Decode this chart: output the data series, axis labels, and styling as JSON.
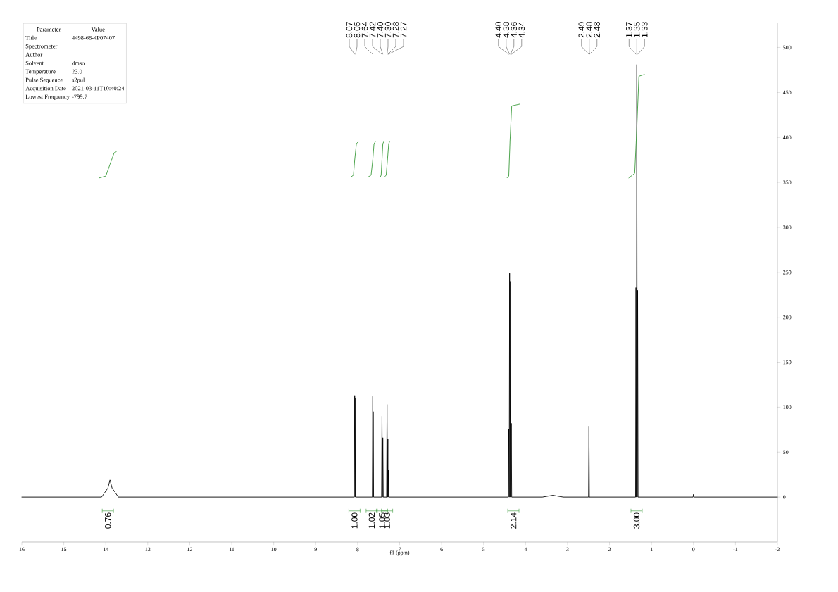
{
  "chart_data": {
    "type": "line",
    "xlabel": "f1 (ppm)",
    "xlim": [
      16,
      -2
    ],
    "xticks": [
      16,
      15,
      14,
      13,
      12,
      11,
      10,
      9,
      8,
      7,
      6,
      5,
      4,
      3,
      2,
      1,
      0,
      -1,
      -2
    ],
    "ylim": [
      -50,
      527
    ],
    "yticks": [
      0,
      50,
      100,
      150,
      200,
      250,
      300,
      350,
      400,
      450,
      500
    ],
    "series": [
      {
        "color": "#000000",
        "x": [
          16,
          14.1,
          13.95,
          13.9,
          13.85,
          13.7,
          8.08,
          8.07,
          8.06,
          8.05,
          8.04,
          7.65,
          7.64,
          7.635,
          7.63,
          7.62,
          7.43,
          7.42,
          7.41,
          7.4,
          7.39,
          7.31,
          7.3,
          7.29,
          7.28,
          7.275,
          7.27,
          7.26,
          4.41,
          4.4,
          4.39,
          4.38,
          4.37,
          4.36,
          4.35,
          4.34,
          4.33,
          3.6,
          3.35,
          3.1,
          2.5,
          2.49,
          2.48,
          1.38,
          1.37,
          1.36,
          1.35,
          1.34,
          1.33,
          1.32,
          0.01,
          0,
          -0.01,
          -2
        ],
        "values": [
          0,
          0,
          10,
          19,
          10,
          0,
          0,
          113,
          0,
          110,
          0,
          0,
          112,
          0,
          95,
          0,
          0,
          90,
          0,
          66,
          0,
          0,
          103,
          0,
          65,
          0,
          30,
          0,
          0,
          76,
          0,
          249,
          0,
          240,
          0,
          82,
          0,
          0,
          2,
          0,
          0,
          79,
          0,
          0,
          233,
          0,
          481,
          0,
          230,
          0,
          0,
          3,
          0,
          0
        ]
      },
      {
        "color": "#3a9a3a",
        "x": [
          14.15,
          14.0,
          13.9,
          13.8,
          13.75
        ],
        "values": [
          355,
          357,
          370,
          383,
          384
        ]
      },
      {
        "color": "#3a9a3a",
        "x": [
          8.16,
          8.1,
          8.07,
          8.03,
          7.99
        ],
        "values": [
          356,
          358,
          375,
          393,
          395
        ]
      },
      {
        "color": "#3a9a3a",
        "x": [
          7.75,
          7.68,
          7.64,
          7.61,
          7.58
        ],
        "values": [
          356,
          358,
          375,
          393,
          395
        ]
      },
      {
        "color": "#3a9a3a",
        "x": [
          7.46,
          7.44,
          7.42,
          7.4,
          7.38
        ],
        "values": [
          356,
          358,
          375,
          393,
          395
        ]
      },
      {
        "color": "#3a9a3a",
        "x": [
          7.36,
          7.32,
          7.29,
          7.26,
          7.24
        ],
        "values": [
          356,
          358,
          375,
          393,
          395
        ]
      },
      {
        "color": "#3a9a3a",
        "x": [
          4.44,
          4.4,
          4.37,
          4.33,
          4.14
        ],
        "values": [
          355,
          357,
          396,
          435,
          437
        ]
      },
      {
        "color": "#3a9a3a",
        "x": [
          1.54,
          1.4,
          1.35,
          1.3,
          1.17
        ],
        "values": [
          355,
          360,
          410,
          468,
          470
        ]
      }
    ],
    "annotations": [
      "Parameter",
      "Value",
      "Title",
      "4498-68-4P07407",
      "Spectrometer",
      null,
      "Author",
      null,
      "Solvent",
      "dmso",
      "Temperature",
      "23.0",
      "Pulse Sequence",
      "s2pul",
      "Acquisition Date",
      "2021-03-11T10:40:24",
      "Lowest Frequency",
      "-799.7",
      {
        "text": "8.07",
        "x": 8.07
      },
      {
        "text": "8.05",
        "x": 8.05
      },
      {
        "text": "7.64",
        "x": 7.64
      },
      {
        "text": "7.42",
        "x": 7.42
      },
      {
        "text": "7.40",
        "x": 7.4
      },
      {
        "text": "7.30",
        "x": 7.3
      },
      {
        "text": "7.28",
        "x": 7.28
      },
      {
        "text": "7.27",
        "x": 7.27
      },
      {
        "text": "4.40",
        "x": 4.4
      },
      {
        "text": "4.38",
        "x": 4.38
      },
      {
        "text": "4.36",
        "x": 4.36
      },
      {
        "text": "4.34",
        "x": 4.34
      },
      {
        "text": "2.49",
        "x": 2.49
      },
      {
        "text": "2.48",
        "x": 2.48
      },
      {
        "text": "2.48",
        "x": 2.48
      },
      {
        "text": "1.37",
        "x": 1.37
      },
      {
        "text": "1.35",
        "x": 1.35
      },
      {
        "text": "1.33",
        "x": 1.33
      },
      "0.76",
      "1.00",
      "1.02",
      "1.05",
      "1.03",
      "2.14",
      "3.00"
    ]
  }
}
